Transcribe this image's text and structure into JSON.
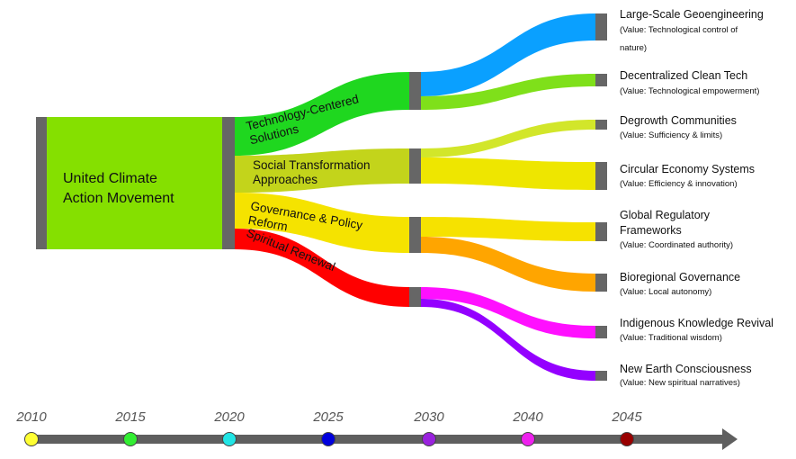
{
  "colors": {
    "root": "#85e000",
    "node_bar": "#666666",
    "timeline": "#5f5f5f"
  },
  "root": {
    "label_lines": [
      "United Climate",
      "Action Movement"
    ]
  },
  "branches": [
    {
      "id": "tech",
      "label_lines": [
        "Technology-Centered",
        "Solutions"
      ],
      "color": "#1fd71f",
      "children": [
        {
          "id": "geo",
          "name_lines": [
            "Large-Scale Geoengineering"
          ],
          "value_lines": [
            "(Value: Technological control of",
            "nature)"
          ],
          "color": "#0aa0ff"
        },
        {
          "id": "dct",
          "name_lines": [
            "Decentralized Clean Tech"
          ],
          "value_lines": [
            "(Value: Technological empowerment)"
          ],
          "color": "#7fe01a"
        }
      ]
    },
    {
      "id": "social",
      "label_lines": [
        "Social Transformation",
        "Approaches"
      ],
      "color": "#c3d41b",
      "children": [
        {
          "id": "degrowth",
          "name_lines": [
            "Degrowth Communities"
          ],
          "value_lines": [
            "(Value: Sufficiency & limits)"
          ],
          "color": "#d2e62a"
        },
        {
          "id": "circular",
          "name_lines": [
            "Circular Economy Systems"
          ],
          "value_lines": [
            "(Value: Efficiency & innovation)"
          ],
          "color": "#eee600"
        }
      ]
    },
    {
      "id": "gov",
      "label_lines": [
        "Governance & Policy",
        "Reform"
      ],
      "color": "#f5e300",
      "children": [
        {
          "id": "global",
          "name_lines": [
            "Global Regulatory",
            "Frameworks"
          ],
          "value_lines": [
            "(Value: Coordinated authority)"
          ],
          "color": "#f6e200"
        },
        {
          "id": "bioreg",
          "name_lines": [
            "Bioregional Governance"
          ],
          "value_lines": [
            "(Value: Local autonomy)"
          ],
          "color": "#ffa500"
        }
      ]
    },
    {
      "id": "spirit",
      "label_lines": [
        "Spiritual Renewal"
      ],
      "color": "#ff0000",
      "children": [
        {
          "id": "indig",
          "name_lines": [
            "Indigenous Knowledge Revival"
          ],
          "value_lines": [
            "(Value: Traditional wisdom)"
          ],
          "color": "#ff10ff"
        },
        {
          "id": "newearth",
          "name_lines": [
            "New Earth Consciousness"
          ],
          "value_lines": [
            "(Value: New spiritual narratives)"
          ],
          "color": "#9400ff"
        }
      ]
    }
  ],
  "timeline": [
    {
      "year": "2010",
      "color": "#ffff33"
    },
    {
      "year": "2015",
      "color": "#33ee33"
    },
    {
      "year": "2020",
      "color": "#22e5e5"
    },
    {
      "year": "2025",
      "color": "#0000dd"
    },
    {
      "year": "2030",
      "color": "#9922dd"
    },
    {
      "year": "2040",
      "color": "#ee22ee"
    },
    {
      "year": "2045",
      "color": "#990000"
    }
  ]
}
